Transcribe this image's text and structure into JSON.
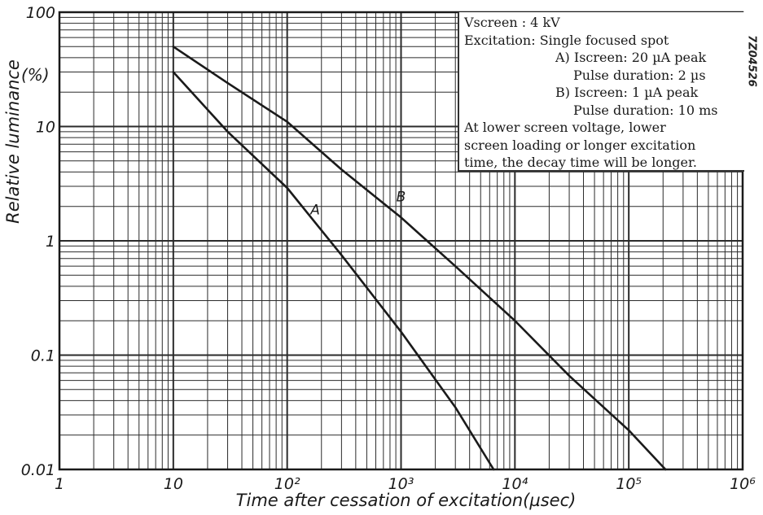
{
  "chart_data": {
    "type": "line",
    "xscale": "log",
    "yscale": "log",
    "xlim": [
      1,
      1000000
    ],
    "ylim": [
      0.01,
      100
    ],
    "grid": true,
    "xlabel": "Time after cessation of excitation(µsec)",
    "ylabel": "Relative luminance",
    "yunit": "(%)",
    "xticks": [
      "1",
      "10",
      "10²",
      "10³",
      "10⁴",
      "10⁵",
      "10⁶"
    ],
    "yticks": [
      "0.01",
      "0.1",
      "1",
      "10",
      "100"
    ],
    "series": [
      {
        "name": "A",
        "x": [
          10,
          30,
          100,
          300,
          1000,
          3000,
          6500
        ],
        "y": [
          30,
          9,
          2.9,
          0.75,
          0.16,
          0.035,
          0.01
        ]
      },
      {
        "name": "B",
        "x": [
          10,
          30,
          100,
          300,
          1000,
          3000,
          10000,
          30000,
          100000,
          210000
        ],
        "y": [
          50,
          24,
          11,
          4.2,
          1.6,
          0.6,
          0.2,
          0.066,
          0.022,
          0.01
        ]
      }
    ],
    "legend": {
      "position": "top-right",
      "lines": [
        "Vscreen   : 4 kV",
        "Excitation: Single focused spot",
        "A) Iscreen: 20 µA peak",
        "Pulse duration: 2 µs",
        "B) Iscreen: 1 µA peak",
        "Pulse duration: 10 ms",
        "At lower screen voltage, lower",
        "screen loading or longer excitation",
        "time, the decay time will be longer."
      ]
    },
    "code": "7Z04526"
  }
}
